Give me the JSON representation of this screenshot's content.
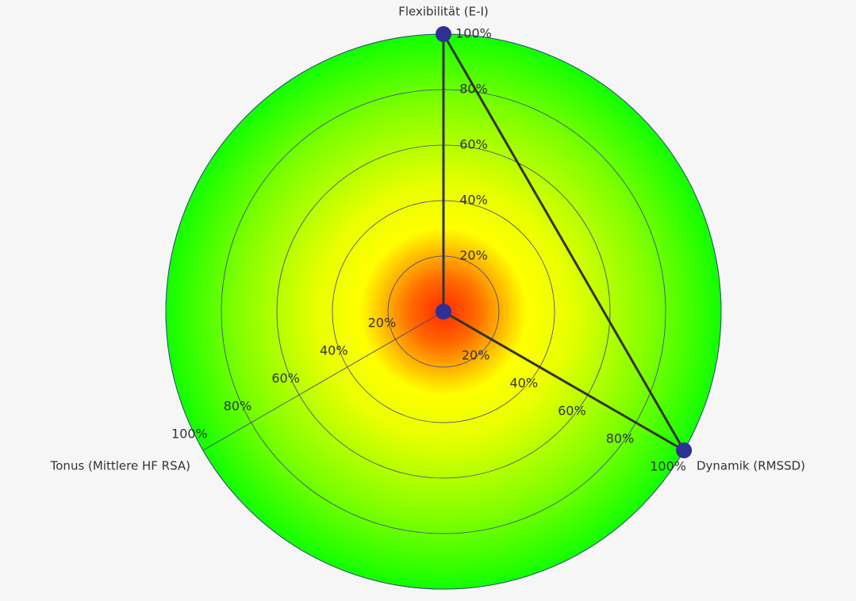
{
  "chart_data": {
    "type": "radar",
    "categories": [
      "Flexibilität (E-I)",
      "Dynamik (RMSSD)",
      "Tonus (Mittlere HF RSA)"
    ],
    "values": [
      100,
      100,
      0
    ],
    "color": "#2e3192",
    "line_color": "#333333",
    "rlim": [
      0,
      100
    ],
    "rticks": [
      {
        "value": 20,
        "label": "20%"
      },
      {
        "value": 40,
        "label": "40%"
      },
      {
        "value": 60,
        "label": "60%"
      },
      {
        "value": 80,
        "label": "80%"
      },
      {
        "value": 100,
        "label": "100%"
      }
    ],
    "grid": true
  }
}
